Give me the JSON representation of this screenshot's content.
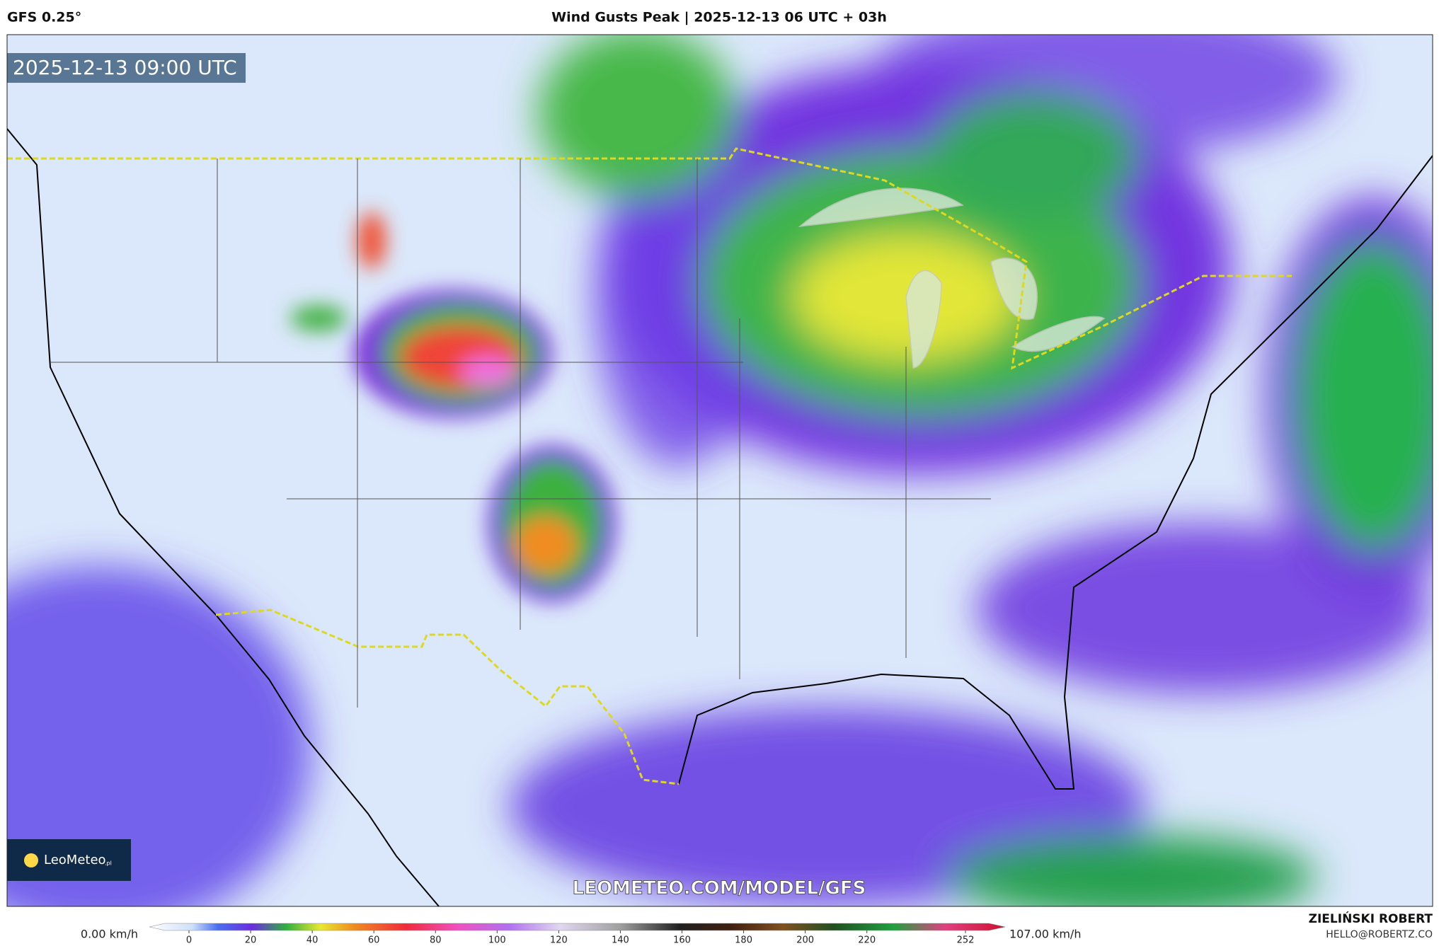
{
  "header": {
    "model": "GFS 0.25°",
    "title": "Wind Gusts Peak | 2025-12-13 06 UTC + 03h"
  },
  "map": {
    "valid_time": "2025-12-13 09:00 UTC",
    "watermark": "LEOMETEO.COM/MODEL/GFS",
    "logo": "LeoMeteo",
    "logo_domain": ".pl"
  },
  "legend": {
    "min_label": "0.00 km/h",
    "max_label": "107.00 km/h",
    "range": [
      0,
      252
    ],
    "ticks": [
      0,
      20,
      40,
      60,
      80,
      100,
      120,
      140,
      160,
      180,
      200,
      220,
      252
    ]
  },
  "credit": {
    "author": "ZIELIŃSKI ROBERT",
    "email": "HELLO@ROBERTZ.CO"
  }
}
